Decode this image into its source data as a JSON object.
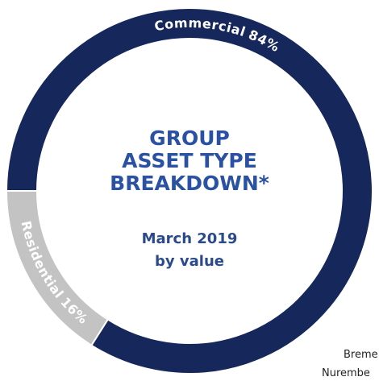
{
  "chart_data": {
    "type": "donut",
    "title": [
      "GROUP",
      "ASSET TYPE",
      "BREAKDOWN*"
    ],
    "subtitle": [
      "March 2019",
      "by value"
    ],
    "categories": [
      "Commercial",
      "Residential"
    ],
    "values": [
      84,
      16
    ],
    "value_labels": [
      "84%",
      "16%"
    ],
    "colors": [
      "#16275c",
      "#c3c3c3"
    ]
  },
  "footnote_fragments": [
    "Breme",
    "Nurembe"
  ]
}
